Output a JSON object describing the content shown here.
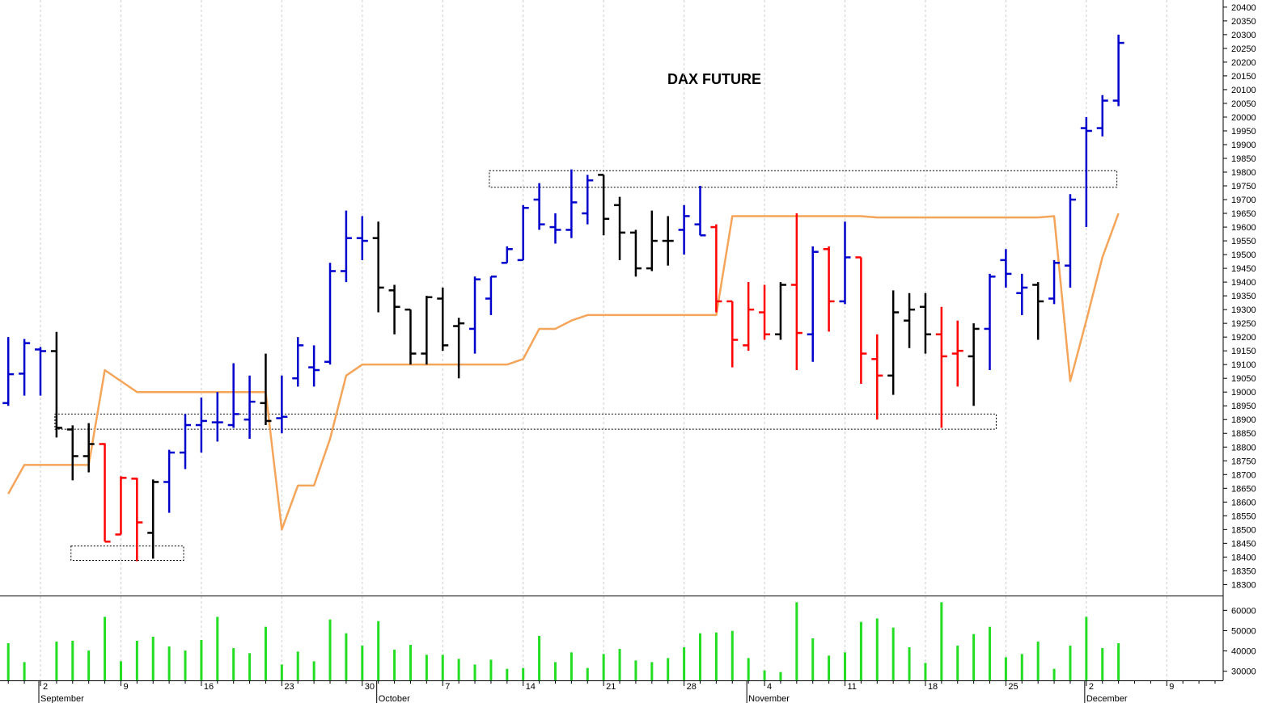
{
  "chart_data": [
    {
      "type": "ohlc",
      "title": "DAX FUTURE",
      "open": [
        18960,
        19067,
        19155,
        19149,
        18864,
        18767,
        18811,
        18482,
        18685,
        18488,
        18673,
        18780,
        18880,
        18890,
        18880,
        18900,
        18960,
        18905,
        19050,
        19090,
        19110,
        19440,
        19560,
        19560,
        19370,
        19300,
        19140,
        19340,
        19240,
        19230,
        19340,
        19470,
        19480,
        19700,
        19600,
        19590,
        19650,
        19790,
        19680,
        19580,
        19450,
        19550,
        19590,
        19610,
        19600,
        19330,
        19170,
        19290,
        19210,
        19390,
        19210,
        19520,
        19330,
        19490,
        19120,
        19060,
        19260,
        19310,
        19210,
        19140,
        19130,
        19230,
        19480,
        19360,
        19390,
        19340,
        19460,
        19960,
        19960,
        20060,
        null,
        null,
        null,
        null,
        null,
        null
      ],
      "high": [
        19200,
        19193,
        19164,
        19219,
        18879,
        18887,
        18814,
        18694,
        18688,
        18682,
        18790,
        18920,
        18980,
        19000,
        19105,
        19060,
        19140,
        19060,
        19200,
        19170,
        19470,
        19660,
        19640,
        19620,
        19390,
        19300,
        19350,
        19380,
        19270,
        19420,
        19420,
        19530,
        19680,
        19760,
        19650,
        19810,
        19790,
        19790,
        19710,
        19590,
        19660,
        19640,
        19680,
        19750,
        19610,
        19330,
        19400,
        19390,
        19400,
        19650,
        19530,
        19530,
        19620,
        19490,
        19210,
        19370,
        19360,
        19360,
        19310,
        19260,
        19250,
        19430,
        19520,
        19430,
        19400,
        19480,
        19720,
        20000,
        20080,
        20300,
        null,
        null,
        null,
        null,
        null,
        null
      ],
      "low": [
        18950,
        18987,
        18987,
        18835,
        18679,
        18708,
        18456,
        18482,
        18385,
        18394,
        18561,
        18720,
        18780,
        18820,
        18870,
        18830,
        18880,
        18850,
        19020,
        19020,
        19100,
        19400,
        19480,
        19290,
        19210,
        19100,
        19100,
        19150,
        19050,
        19140,
        19280,
        19470,
        19480,
        19590,
        19540,
        19560,
        19610,
        19570,
        19480,
        19420,
        19440,
        19460,
        19500,
        19570,
        19290,
        19090,
        19150,
        19190,
        19190,
        19080,
        19110,
        19220,
        19320,
        19030,
        18900,
        18990,
        19160,
        19140,
        18870,
        19020,
        18950,
        19080,
        19380,
        19280,
        19190,
        19320,
        19380,
        19600,
        19930,
        20040,
        null,
        null,
        null,
        null,
        null,
        null
      ],
      "close": [
        19065,
        19178,
        19149,
        18870,
        18767,
        18811,
        18456,
        18688,
        18526,
        18673,
        18780,
        18880,
        18895,
        18890,
        18920,
        18965,
        18895,
        18910,
        19170,
        19080,
        19440,
        19560,
        19550,
        19380,
        19310,
        19140,
        19345,
        19170,
        19250,
        19410,
        19420,
        19520,
        19670,
        19610,
        19590,
        19690,
        19770,
        19630,
        19580,
        19450,
        19550,
        19550,
        19640,
        19570,
        19330,
        19190,
        19300,
        19210,
        19390,
        19215,
        19510,
        19330,
        19490,
        19140,
        19060,
        19290,
        19300,
        19210,
        19130,
        19150,
        19230,
        19420,
        19430,
        19380,
        19330,
        19470,
        19700,
        19950,
        20060,
        20270,
        null,
        null,
        null,
        null,
        null,
        null
      ],
      "colors": [
        "#00c",
        "#00c",
        "#00c",
        "#000",
        "#000",
        "#000",
        "#f00",
        "#f00",
        "#f00",
        "#000",
        "#00c",
        "#00c",
        "#00c",
        "#00c",
        "#00c",
        "#00c",
        "#000",
        "#00c",
        "#00c",
        "#00c",
        "#00c",
        "#00c",
        "#00c",
        "#000",
        "#000",
        "#000",
        "#000",
        "#000",
        "#000",
        "#00c",
        "#00c",
        "#00c",
        "#00c",
        "#00c",
        "#00c",
        "#00c",
        "#00c",
        "#000",
        "#000",
        "#000",
        "#000",
        "#000",
        "#00c",
        "#00c",
        "#f00",
        "#f00",
        "#f00",
        "#f00",
        "#000",
        "#f00",
        "#00c",
        "#f00",
        "#00c",
        "#f00",
        "#f00",
        "#000",
        "#000",
        "#000",
        "#f00",
        "#f00",
        "#000",
        "#00c",
        "#00c",
        "#00c",
        "#000",
        "#00c",
        "#00c",
        "#00c",
        "#00c",
        "#00c",
        null,
        null,
        null,
        null,
        null,
        null
      ],
      "lines": [
        {
          "color": "#f5a55a",
          "values": [
            18630,
            18735,
            18735,
            18735,
            18735,
            18735,
            19080,
            19040,
            19000,
            19000,
            19000,
            19000,
            19000,
            19000,
            19000,
            19000,
            19000,
            18500,
            18660,
            18660,
            18830,
            19060,
            19100,
            19100,
            19100,
            19100,
            19100,
            19100,
            19100,
            19100,
            19100,
            19100,
            19120,
            19230,
            19230,
            19260,
            19280,
            19280,
            19280,
            19280,
            19280,
            19280,
            19280,
            19280,
            19280,
            19640,
            19640,
            19640,
            19640,
            19640,
            19640,
            19640,
            19640,
            19640,
            19635,
            19635,
            19635,
            19635,
            19635,
            19635,
            19635,
            19635,
            19635,
            19635,
            19635,
            19640,
            19040,
            19260,
            19490,
            19650,
            null,
            null,
            null,
            null,
            null,
            null
          ]
        }
      ],
      "zones": [
        {
          "from": 30,
          "to": 69,
          "low": 19745,
          "high": 19805
        },
        {
          "from": 3,
          "to": 61.5,
          "low": 18865,
          "high": 18920
        },
        {
          "from": 4,
          "to": 11,
          "low": 18388,
          "high": 18440
        }
      ],
      "ylim": [
        18260,
        20426
      ],
      "yticks": [
        18300,
        18350,
        18400,
        18450,
        18500,
        18550,
        18600,
        18650,
        18700,
        18750,
        18800,
        18850,
        18900,
        18950,
        19000,
        19050,
        19100,
        19150,
        19200,
        19250,
        19300,
        19350,
        19400,
        19450,
        19500,
        19550,
        19600,
        19650,
        19700,
        19750,
        19800,
        19850,
        19900,
        19950,
        20000,
        20050,
        20100,
        20150,
        20200,
        20250,
        20300,
        20350,
        20400
      ]
    },
    {
      "type": "bar",
      "color": "#22dd22",
      "categories": [
        null,
        null,
        "2",
        null,
        null,
        null,
        null,
        "9",
        null,
        null,
        null,
        null,
        "16",
        null,
        null,
        null,
        null,
        "23",
        null,
        null,
        null,
        null,
        "30",
        null,
        null,
        null,
        null,
        "7",
        null,
        null,
        null,
        null,
        "14",
        null,
        null,
        null,
        null,
        "21",
        null,
        null,
        null,
        null,
        "28",
        null,
        null,
        null,
        null,
        "4",
        null,
        null,
        null,
        null,
        "11",
        null,
        null,
        null,
        null,
        "18",
        null,
        null,
        null,
        null,
        "25",
        null,
        null,
        null,
        null,
        "2",
        null,
        null,
        null,
        null,
        "9",
        null,
        null,
        null
      ],
      "months": [
        {
          "label": "September",
          "at": 2
        },
        {
          "label": "October",
          "at": 23
        },
        {
          "label": "November",
          "at": 46
        },
        {
          "label": "December",
          "at": 67
        }
      ],
      "values": [
        43800,
        34500,
        null,
        44600,
        45000,
        40200,
        56800,
        34900,
        45000,
        47000,
        42200,
        40200,
        45400,
        56800,
        41400,
        38900,
        51900,
        33300,
        39700,
        34900,
        55500,
        48700,
        42600,
        54700,
        40600,
        43000,
        38100,
        38100,
        36100,
        33300,
        35700,
        31200,
        31600,
        47400,
        34500,
        39300,
        31600,
        38500,
        41000,
        35300,
        34500,
        36500,
        41800,
        48700,
        49100,
        49900,
        36500,
        30400,
        29600,
        64000,
        46200,
        37700,
        39300,
        54300,
        56000,
        51500,
        41800,
        34100,
        64000,
        42600,
        48300,
        51900,
        36900,
        38500,
        44600,
        31200,
        42600,
        56800,
        41400,
        43800,
        null,
        null,
        null,
        null,
        null,
        null
      ],
      "ylim": [
        25500,
        66900
      ],
      "yticks": [
        30000,
        40000,
        50000,
        60000
      ]
    }
  ]
}
